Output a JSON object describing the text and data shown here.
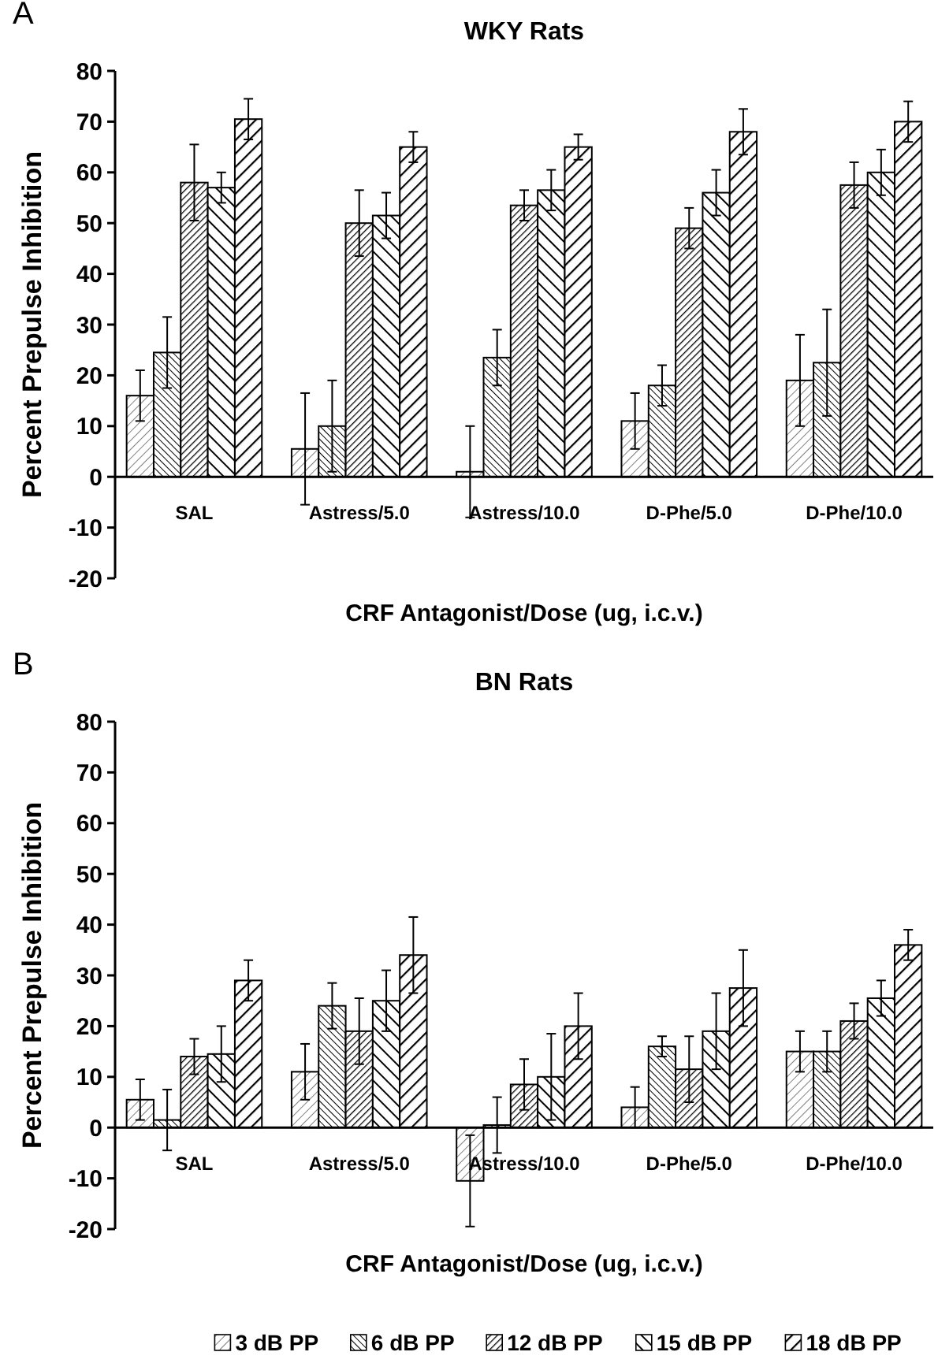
{
  "chart_data": [
    {
      "type": "bar",
      "title": "WKY Rats",
      "subtitle": "A",
      "xlabel": "CRF Antagonist/Dose (ug, i.c.v.)",
      "ylabel": "Percent Prepulse Inhibition",
      "categories": [
        "SAL",
        "Astress/5.0",
        "Astress/10.0",
        "D-Phe/5.0",
        "D-Phe/10.0"
      ],
      "ylim": [
        -20,
        80
      ],
      "yticks": [
        -20,
        -10,
        0,
        10,
        20,
        30,
        40,
        50,
        60,
        70,
        80
      ],
      "series": [
        {
          "color": "#000000",
          "values": [
            16,
            5.5,
            1,
            11,
            19
          ],
          "errors": [
            5,
            11,
            9,
            5.5,
            9
          ]
        },
        {
          "color": "#000000",
          "values": [
            24.5,
            10,
            23.5,
            18,
            22.5
          ],
          "errors": [
            7,
            9,
            5.5,
            4,
            10.5
          ]
        },
        {
          "color": "#000000",
          "values": [
            58,
            50,
            53.5,
            49,
            57.5
          ],
          "errors": [
            7.5,
            6.5,
            3,
            4,
            4.5
          ]
        },
        {
          "color": "#000000",
          "values": [
            57,
            51.5,
            56.5,
            56,
            60
          ],
          "errors": [
            3,
            4.5,
            4,
            4.5,
            4.5
          ]
        },
        {
          "color": "#000000",
          "values": [
            70.5,
            65,
            65,
            68,
            70
          ],
          "errors": [
            4,
            3,
            2.5,
            4.5,
            4
          ]
        }
      ]
    },
    {
      "type": "bar",
      "title": "BN Rats",
      "subtitle": "B",
      "xlabel": "CRF Antagonist/Dose (ug, i.c.v.)",
      "ylabel": "Percent Prepulse Inhibition",
      "categories": [
        "SAL",
        "Astress/5.0",
        "Astress/10.0",
        "D-Phe/5.0",
        "D-Phe/10.0"
      ],
      "ylim": [
        -20,
        80
      ],
      "yticks": [
        -20,
        -10,
        0,
        10,
        20,
        30,
        40,
        50,
        60,
        70,
        80
      ],
      "legend": "bottom",
      "series": [
        {
          "name": "3 dB PP",
          "color": "#000000",
          "values": [
            5.5,
            11,
            -10.5,
            4,
            15
          ],
          "errors": [
            4,
            5.5,
            9,
            4,
            4
          ]
        },
        {
          "name": "6 dB PP",
          "color": "#000000",
          "values": [
            1.5,
            24,
            0.5,
            16,
            15
          ],
          "errors": [
            6,
            4.5,
            5.5,
            2,
            4
          ]
        },
        {
          "name": "12 dB PP",
          "color": "#000000",
          "values": [
            14,
            19,
            8.5,
            11.5,
            21
          ],
          "errors": [
            3.5,
            6.5,
            5,
            6.5,
            3.5
          ]
        },
        {
          "name": "15 dB PP",
          "color": "#000000",
          "values": [
            14.5,
            25,
            10,
            19,
            25.5
          ],
          "errors": [
            5.5,
            6,
            8.5,
            7.5,
            3.5
          ]
        },
        {
          "name": "18 dB PP",
          "color": "#000000",
          "values": [
            29,
            34,
            20,
            27.5,
            36
          ],
          "errors": [
            4,
            7.5,
            6.5,
            7.5,
            3
          ]
        }
      ]
    }
  ]
}
